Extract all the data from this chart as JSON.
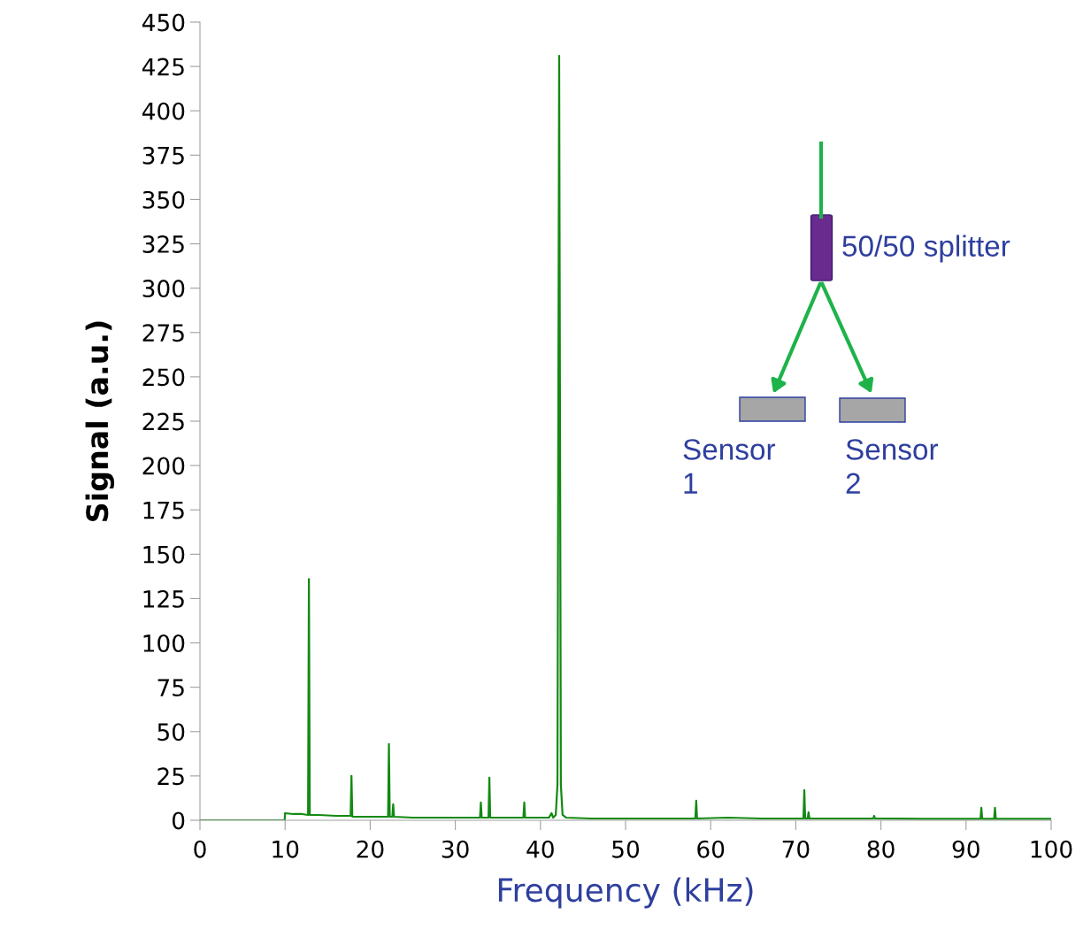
{
  "chart_data": {
    "type": "line",
    "xlabel": "Frequency (kHz)",
    "ylabel": "Signal (a.u.)",
    "x": [
      0,
      9.95,
      10.0,
      11,
      12,
      12.7,
      12.8,
      12.9,
      14,
      16,
      17.7,
      17.8,
      17.9,
      20,
      22.1,
      22.2,
      22.3,
      22.6,
      22.7,
      22.8,
      25,
      28,
      32.9,
      33.0,
      33.1,
      33.9,
      34.0,
      34.1,
      36,
      38.0,
      38.1,
      38.2,
      41.0,
      41.3,
      41.5,
      41.8,
      42.0,
      42.2,
      42.4,
      42.6,
      43.0,
      46,
      50,
      55,
      58.2,
      58.3,
      58.4,
      62,
      66,
      70.9,
      71.0,
      71.1,
      71.4,
      71.5,
      71.6,
      75,
      79.1,
      79.2,
      79.3,
      85,
      91.7,
      91.8,
      91.9,
      93.3,
      93.4,
      93.5,
      97,
      100
    ],
    "series": [
      {
        "color": "#138a13",
        "values": [
          0,
          0,
          4,
          3.5,
          3.5,
          3,
          136,
          3,
          3,
          2.5,
          2.5,
          25,
          2,
          2,
          2,
          43,
          2,
          2,
          9,
          2,
          1.5,
          1.5,
          1.5,
          10,
          1.5,
          1.5,
          24,
          1.5,
          1.5,
          1.5,
          10,
          1.5,
          1.5,
          4,
          1.5,
          3,
          20,
          431,
          20,
          3,
          1.5,
          1,
          1,
          1,
          1,
          11,
          1,
          1.5,
          1,
          1,
          17,
          1,
          1,
          4.5,
          1,
          1,
          1,
          2.5,
          1,
          0.8,
          0.8,
          7,
          0.8,
          0.8,
          7,
          0.8,
          0.8,
          0.8
        ]
      }
    ],
    "xlim": [
      0,
      100
    ],
    "xticks": [
      0,
      10,
      20,
      30,
      40,
      50,
      60,
      70,
      80,
      90,
      100
    ],
    "ylim": [
      0,
      450
    ],
    "yticks": [
      0,
      25,
      50,
      75,
      100,
      125,
      150,
      175,
      200,
      225,
      250,
      275,
      300,
      325,
      350,
      375,
      400,
      425,
      450
    ],
    "grid": false,
    "legend": false,
    "marker": "none",
    "line_style": "solid",
    "annotations": [
      "50/50 splitter",
      "Sensor\n1",
      "Sensor\n2"
    ]
  }
}
